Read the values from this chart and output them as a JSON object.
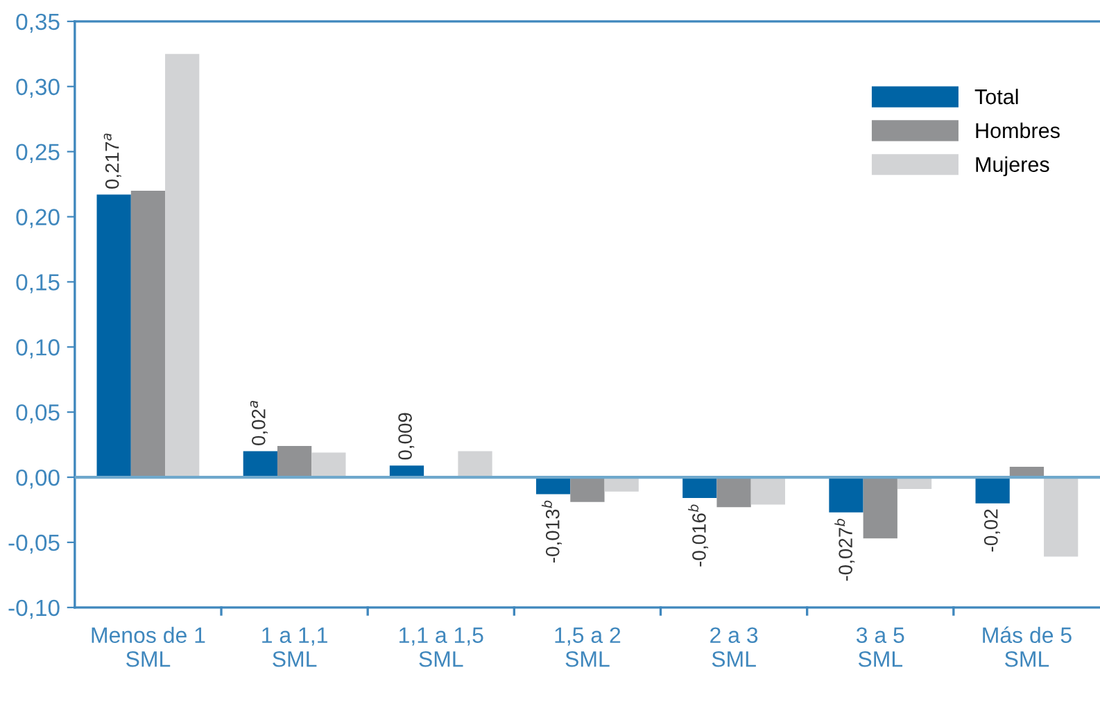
{
  "chart_data": {
    "type": "bar",
    "categories": [
      "Menos de 1\nSML",
      "1 a 1,1\nSML",
      "1,1 a 1,5\nSML",
      "1,5 a 2\nSML",
      "2 a 3\nSML",
      "3 a 5\nSML",
      "Más de 5\nSML"
    ],
    "series": [
      {
        "name": "Total",
        "color": "#0064a5",
        "values": [
          0.217,
          0.02,
          0.009,
          -0.013,
          -0.016,
          -0.027,
          -0.02
        ],
        "value_labels": [
          "0,217$^{a}$",
          "0,02$^{a}$",
          "0,009",
          "-0,013$^{b}$",
          "-0,016$^{b}$",
          "-0,027$^{b}$",
          "-0,02"
        ]
      },
      {
        "name": "Hombres",
        "color": "#919294",
        "values": [
          0.22,
          0.024,
          null,
          -0.019,
          -0.023,
          -0.047,
          0.008
        ]
      },
      {
        "name": "Mujeres",
        "color": "#d2d3d5",
        "values": [
          0.325,
          0.019,
          0.02,
          -0.011,
          -0.021,
          -0.009,
          -0.061
        ]
      }
    ],
    "ylim": [
      -0.1,
      0.35
    ],
    "yticks": [
      {
        "value": -0.1,
        "label": "-0,10"
      },
      {
        "value": -0.05,
        "label": "-0,05"
      },
      {
        "value": 0,
        "label": "0,00"
      },
      {
        "value": 0.05,
        "label": "0,05"
      },
      {
        "value": 0.1,
        "label": "0,10"
      },
      {
        "value": 0.15,
        "label": "0,15"
      },
      {
        "value": 0.2,
        "label": "0,20"
      },
      {
        "value": 0.25,
        "label": "0,25"
      },
      {
        "value": 0.3,
        "label": "0,30"
      },
      {
        "value": 0.35,
        "label": "0,35"
      }
    ],
    "ref_lines": [
      {
        "axis": "y",
        "value": 0,
        "color": "#6fa8cc"
      }
    ],
    "grid": false,
    "legend": "top right"
  }
}
